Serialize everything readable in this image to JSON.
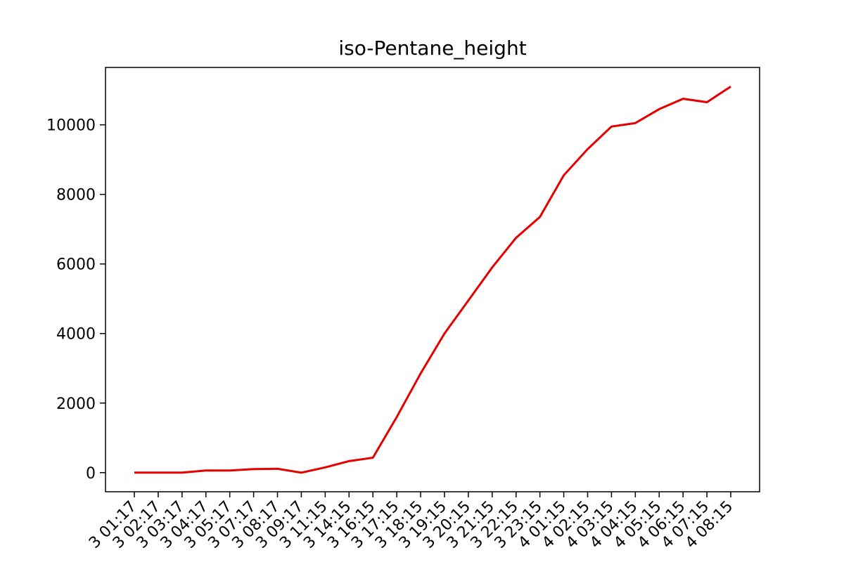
{
  "chart_data": {
    "type": "line",
    "title": "iso-Pentane_height",
    "xlabel": "",
    "ylabel": "",
    "grid": false,
    "ylim": [
      -550,
      11650
    ],
    "yticks": [
      0,
      2000,
      4000,
      6000,
      8000,
      10000
    ],
    "ytick_labels": [
      "0",
      "2000",
      "4000",
      "6000",
      "8000",
      "10000"
    ],
    "categories": [
      "3 01:17",
      "3 02:17",
      "3 03:17",
      "3 04:17",
      "3 05:17",
      "3 07:17",
      "3 08:17",
      "3 09:17",
      "3 11:15",
      "3 14:15",
      "3 16:15",
      "3 17:15",
      "3 18:15",
      "3 19:15",
      "3 20:15",
      "3 21:15",
      "3 22:15",
      "3 23:15",
      "4 01:15",
      "4 02:15",
      "4 03:15",
      "4 04:15",
      "4 05:15",
      "4 06:15",
      "4 07:15",
      "4 08:15"
    ],
    "series": [
      {
        "color": "#e60000",
        "values": [
          0,
          0,
          0,
          60,
          60,
          100,
          110,
          0,
          150,
          330,
          430,
          1600,
          2850,
          4000,
          4950,
          5900,
          6750,
          7350,
          8550,
          9300,
          9950,
          10050,
          10450,
          10750,
          10650,
          11100
        ]
      }
    ]
  }
}
